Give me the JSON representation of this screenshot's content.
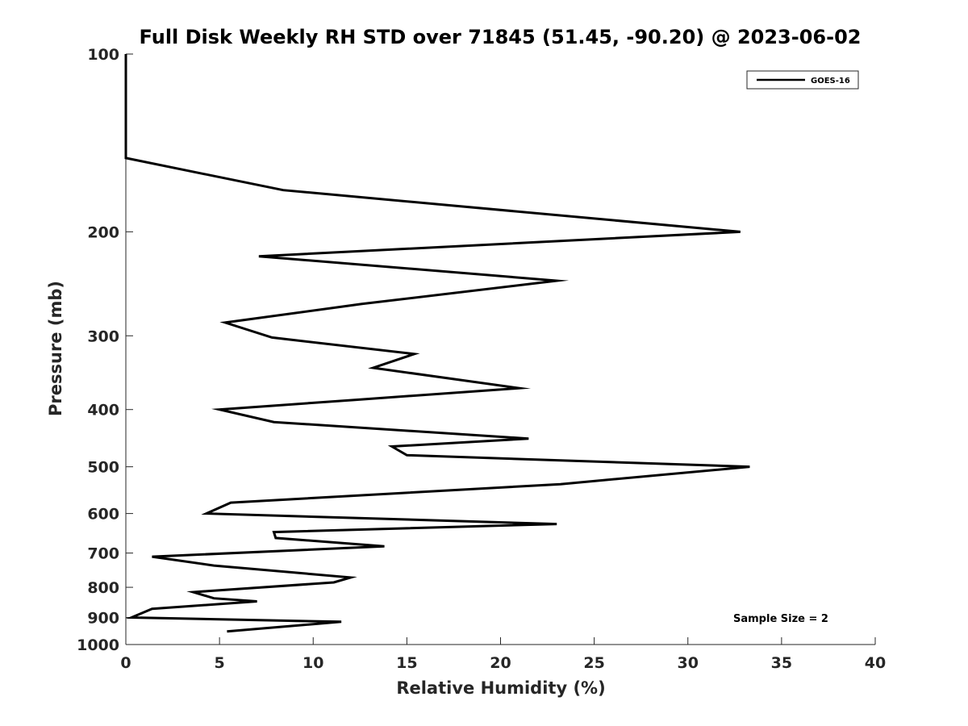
{
  "chart_data": {
    "type": "line",
    "title": "Full Disk Weekly RH STD over 71845 (51.45, -90.20) @ 2023-06-02",
    "xlabel": "Relative Humidity (%)",
    "ylabel": "Pressure (mb)",
    "xlim": [
      0,
      40
    ],
    "ylim": [
      100,
      1000
    ],
    "y_scale": "log",
    "y_reversed": true,
    "x_ticks": [
      0,
      5,
      10,
      15,
      20,
      25,
      30,
      35,
      40
    ],
    "x_tick_labels": [
      "0",
      "5",
      "10",
      "15",
      "20",
      "25",
      "30",
      "35",
      "40"
    ],
    "y_ticks": [
      100,
      200,
      300,
      400,
      500,
      600,
      700,
      800,
      900,
      1000
    ],
    "y_tick_labels": [
      "100",
      "200",
      "300",
      "400",
      "500",
      "600",
      "700",
      "800",
      "900",
      "1000"
    ],
    "grid": false,
    "legend_position": "top-right",
    "series": [
      {
        "name": "GOES-16",
        "color": "#000000",
        "x": [
          0,
          0,
          8.4,
          32.8,
          7.1,
          23.0,
          12.6,
          5.3,
          7.8,
          15.4,
          13.2,
          21.0,
          12.3,
          5.0,
          7.9,
          21.5,
          14.2,
          15.0,
          33.3,
          23.2,
          5.6,
          4.3,
          23.0,
          7.9,
          8.0,
          13.8,
          1.4,
          4.7,
          12.0,
          11.1,
          3.6,
          4.7,
          7.0,
          1.4,
          0.3,
          11.5,
          5.4
        ],
        "y": [
          100,
          150,
          170,
          200,
          220,
          242,
          265,
          285,
          302,
          322,
          340,
          368,
          385,
          400,
          420,
          448,
          462,
          478,
          500,
          535,
          575,
          600,
          625,
          645,
          660,
          682,
          710,
          735,
          770,
          785,
          815,
          835,
          845,
          870,
          900,
          915,
          950
        ]
      }
    ],
    "annotation": "Sample Size = 2"
  }
}
